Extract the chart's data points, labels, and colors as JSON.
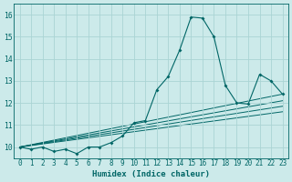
{
  "xlabel": "Humidex (Indice chaleur)",
  "background_color": "#cceaea",
  "grid_color": "#aad4d4",
  "line_color": "#006666",
  "xlim": [
    -0.5,
    23.5
  ],
  "ylim": [
    9.5,
    16.5
  ],
  "xticks": [
    0,
    1,
    2,
    3,
    4,
    5,
    6,
    7,
    8,
    9,
    10,
    11,
    12,
    13,
    14,
    15,
    16,
    17,
    18,
    19,
    20,
    21,
    22,
    23
  ],
  "yticks": [
    10,
    11,
    12,
    13,
    14,
    15,
    16
  ],
  "main_line": {
    "x": [
      0,
      1,
      2,
      3,
      4,
      5,
      6,
      7,
      8,
      9,
      10,
      11,
      12,
      13,
      14,
      15,
      16,
      17,
      18,
      19,
      20,
      21,
      22,
      23
    ],
    "y": [
      10.0,
      9.9,
      10.0,
      9.8,
      9.9,
      9.7,
      10.0,
      10.0,
      10.2,
      10.5,
      11.1,
      11.2,
      12.6,
      13.2,
      14.4,
      15.9,
      15.85,
      15.0,
      12.8,
      12.0,
      11.95,
      13.3,
      13.0,
      12.4
    ]
  },
  "trend_lines": [
    {
      "x": [
        0,
        23
      ],
      "y": [
        10.0,
        12.4
      ]
    },
    {
      "x": [
        0,
        23
      ],
      "y": [
        10.0,
        12.1
      ]
    },
    {
      "x": [
        0,
        23
      ],
      "y": [
        10.0,
        11.85
      ]
    },
    {
      "x": [
        0,
        23
      ],
      "y": [
        10.0,
        11.6
      ]
    }
  ],
  "tick_fontsize": 5.5,
  "xlabel_fontsize": 6.5
}
